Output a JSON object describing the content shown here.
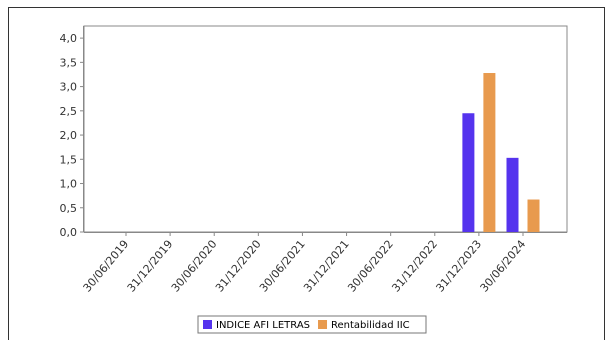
{
  "chart_data": {
    "type": "bar",
    "categories": [
      "30/06/2019",
      "31/12/2019",
      "30/06/2020",
      "31/12/2020",
      "30/06/2021",
      "31/12/2021",
      "30/06/2022",
      "31/12/2022",
      "31/12/2023",
      "30/06/2024"
    ],
    "series": [
      {
        "name": "INDICE AFI LETRAS",
        "color": "#5533ee",
        "values": [
          null,
          null,
          null,
          null,
          null,
          null,
          null,
          null,
          2.45,
          1.53
        ]
      },
      {
        "name": "Rentabilidad IIC",
        "color": "#e89a4e",
        "values": [
          null,
          null,
          null,
          null,
          null,
          null,
          null,
          null,
          3.28,
          0.67
        ]
      }
    ],
    "yticks": [
      "0,0",
      "0,5",
      "1,0",
      "1,5",
      "2,0",
      "2,5",
      "3,0",
      "3,5",
      "4,0"
    ],
    "ylim": [
      0,
      4.25
    ],
    "grid": false,
    "legend_position": "bottom-center"
  }
}
